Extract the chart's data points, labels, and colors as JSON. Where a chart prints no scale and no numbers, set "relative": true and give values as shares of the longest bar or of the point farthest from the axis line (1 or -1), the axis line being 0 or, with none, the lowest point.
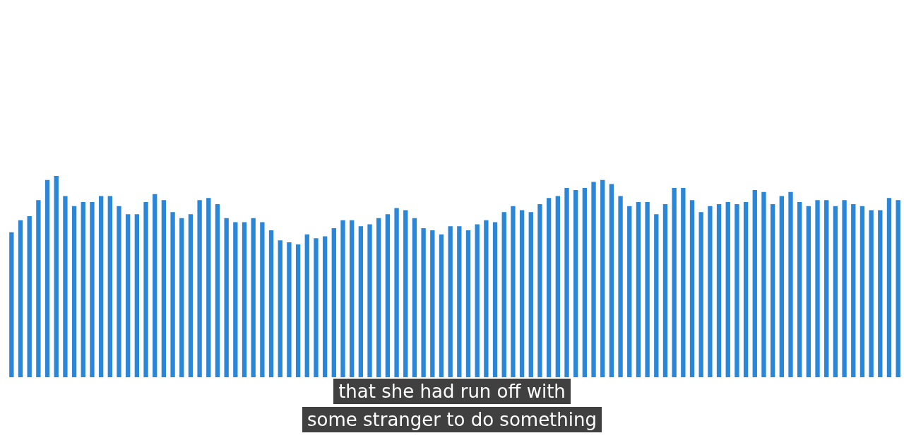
{
  "chart_data": {
    "type": "bar",
    "relative": true,
    "categories": [
      null,
      null,
      null,
      null,
      null,
      null,
      null,
      null,
      null,
      null,
      null,
      null,
      null,
      null,
      null,
      null,
      null,
      null,
      null,
      null,
      null,
      null,
      null,
      null,
      null,
      null,
      null,
      null,
      null,
      null,
      null,
      null,
      null,
      null,
      null,
      null,
      null,
      null,
      null,
      null,
      null,
      null,
      null,
      null,
      null,
      null,
      null,
      null,
      null,
      null,
      null,
      null,
      null,
      null,
      null,
      null,
      null,
      null,
      null,
      null,
      null,
      null,
      null,
      null,
      null,
      null,
      null,
      null,
      null,
      null,
      null,
      null,
      null,
      null,
      null,
      null,
      null,
      null,
      null,
      null,
      null,
      null,
      null,
      null,
      null,
      null,
      null,
      null,
      null,
      null,
      null,
      null,
      null,
      null,
      null,
      null,
      null,
      null,
      null,
      null
    ],
    "values": [
      0.72,
      0.78,
      0.8,
      0.88,
      0.98,
      1,
      0.9,
      0.85,
      0.87,
      0.87,
      0.9,
      0.9,
      0.85,
      0.81,
      0.81,
      0.87,
      0.91,
      0.88,
      0.82,
      0.79,
      0.81,
      0.88,
      0.89,
      0.86,
      0.79,
      0.77,
      0.77,
      0.79,
      0.77,
      0.73,
      0.68,
      0.67,
      0.66,
      0.71,
      0.69,
      0.7,
      0.74,
      0.78,
      0.78,
      0.75,
      0.76,
      0.79,
      0.81,
      0.84,
      0.83,
      0.79,
      0.74,
      0.73,
      0.71,
      0.75,
      0.75,
      0.73,
      0.76,
      0.78,
      0.77,
      0.82,
      0.85,
      0.83,
      0.82,
      0.86,
      0.89,
      0.9,
      0.94,
      0.93,
      0.94,
      0.97,
      0.98,
      0.96,
      0.9,
      0.85,
      0.87,
      0.87,
      0.81,
      0.86,
      0.94,
      0.94,
      0.88,
      0.82,
      0.85,
      0.86,
      0.87,
      0.86,
      0.87,
      0.93,
      0.92,
      0.86,
      0.9,
      0.92,
      0.87,
      0.85,
      0.88,
      0.88,
      0.85,
      0.88,
      0.86,
      0.85,
      0.83,
      0.83,
      0.89,
      0.88
    ],
    "color": "#2a86d8",
    "annotations": [
      "that she had run off with",
      "some stranger to do something"
    ]
  }
}
